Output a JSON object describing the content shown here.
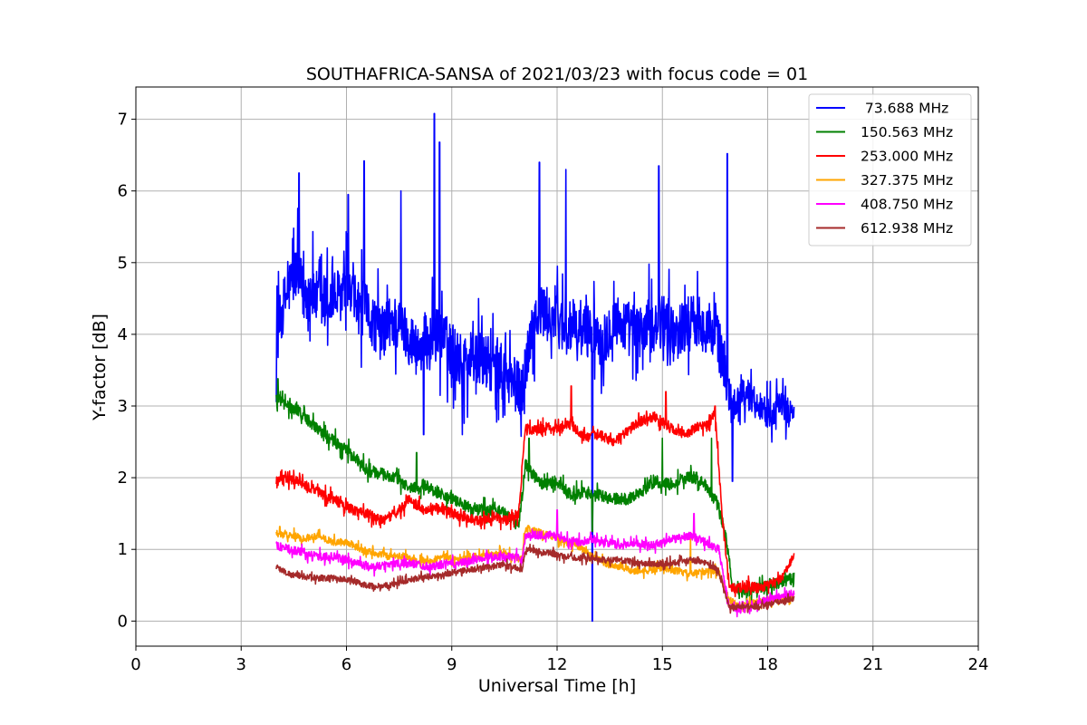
{
  "chart_data": {
    "type": "line",
    "title": "SOUTHAFRICA-SANSA of 2021/03/23 with focus code = 01",
    "xlabel": "Universal Time [h]",
    "ylabel": "Y-factor [dB]",
    "xlim": [
      0,
      24
    ],
    "ylim": [
      -0.35,
      7.45
    ],
    "xticks": [
      0,
      3,
      6,
      9,
      12,
      15,
      18,
      21,
      24
    ],
    "xtick_labels": [
      "0",
      "3",
      "6",
      "9",
      "12",
      "15",
      "18",
      "21",
      "24"
    ],
    "yticks": [
      0,
      1,
      2,
      3,
      4,
      5,
      6,
      7
    ],
    "ytick_labels": [
      "0",
      "1",
      "2",
      "3",
      "4",
      "5",
      "6",
      "7"
    ],
    "grid": true,
    "legend_position": "top-right",
    "series": [
      {
        "name": " 73.688 MHz",
        "color": "#0000ff",
        "x": [
          4.0,
          4.2,
          4.4,
          4.6,
          4.8,
          5.0,
          5.3,
          5.6,
          6.0,
          6.3,
          6.6,
          7.0,
          7.3,
          7.6,
          8.0,
          8.3,
          8.6,
          9.0,
          9.3,
          9.6,
          10.0,
          10.3,
          10.6,
          11.0,
          11.3,
          11.6,
          12.0,
          12.3,
          12.6,
          13.0,
          13.3,
          13.6,
          14.0,
          14.3,
          14.6,
          15.0,
          15.3,
          15.6,
          16.0,
          16.3,
          16.6,
          17.0,
          17.3,
          17.6,
          18.0,
          18.3,
          18.6,
          18.75
        ],
        "y": [
          3.9,
          4.4,
          4.7,
          4.9,
          4.5,
          4.6,
          4.4,
          4.5,
          4.6,
          4.4,
          4.3,
          4.0,
          4.2,
          4.1,
          3.8,
          3.9,
          4.0,
          3.8,
          3.6,
          3.7,
          3.6,
          3.5,
          3.4,
          3.2,
          4.2,
          4.3,
          4.2,
          4.1,
          4.0,
          4.1,
          3.9,
          4.2,
          4.1,
          4.0,
          4.1,
          4.2,
          4.0,
          4.1,
          4.2,
          4.1,
          3.9,
          3.0,
          3.2,
          3.1,
          2.9,
          3.0,
          2.9,
          3.0
        ],
        "spikes": [
          {
            "x": 4.65,
            "y": 6.25
          },
          {
            "x": 6.05,
            "y": 5.95
          },
          {
            "x": 6.5,
            "y": 6.42
          },
          {
            "x": 7.55,
            "y": 6.0
          },
          {
            "x": 8.5,
            "y": 7.08
          },
          {
            "x": 8.65,
            "y": 6.68
          },
          {
            "x": 11.5,
            "y": 6.4
          },
          {
            "x": 12.25,
            "y": 6.3
          },
          {
            "x": 13.0,
            "y": 0.0
          },
          {
            "x": 14.9,
            "y": 6.35
          },
          {
            "x": 16.85,
            "y": 6.52
          },
          {
            "x": 17.0,
            "y": 1.95
          },
          {
            "x": 8.2,
            "y": 2.6
          },
          {
            "x": 9.3,
            "y": 2.6
          }
        ]
      },
      {
        "name": "150.563 MHz",
        "color": "#008000",
        "x": [
          4.0,
          4.3,
          4.6,
          5.0,
          5.4,
          5.8,
          6.2,
          6.6,
          7.0,
          7.4,
          7.8,
          8.2,
          8.6,
          9.0,
          9.4,
          9.8,
          10.2,
          10.6,
          10.9,
          11.1,
          11.3,
          11.6,
          12.0,
          12.4,
          12.8,
          13.2,
          13.6,
          14.0,
          14.4,
          14.8,
          15.2,
          15.6,
          16.0,
          16.3,
          16.6,
          16.8,
          17.0,
          17.3,
          17.6,
          18.0,
          18.4,
          18.75
        ],
        "y": [
          3.1,
          3.0,
          2.95,
          2.75,
          2.6,
          2.45,
          2.3,
          2.1,
          2.05,
          2.0,
          1.85,
          1.9,
          1.8,
          1.7,
          1.6,
          1.55,
          1.55,
          1.5,
          1.3,
          2.2,
          2.05,
          1.9,
          1.95,
          1.75,
          1.8,
          1.75,
          1.7,
          1.7,
          1.8,
          1.95,
          1.9,
          2.0,
          2.0,
          1.85,
          1.6,
          1.2,
          0.5,
          0.4,
          0.45,
          0.5,
          0.55,
          0.6
        ],
        "spikes": [
          {
            "x": 4.05,
            "y": 3.38
          },
          {
            "x": 8.0,
            "y": 2.35
          },
          {
            "x": 11.2,
            "y": 2.55
          },
          {
            "x": 15.0,
            "y": 2.55
          },
          {
            "x": 16.4,
            "y": 2.55
          },
          {
            "x": 13.0,
            "y": 1.25
          }
        ]
      },
      {
        "name": "253.000 MHz",
        "color": "#ff0000",
        "x": [
          4.0,
          4.3,
          4.6,
          5.0,
          5.4,
          5.8,
          6.2,
          6.6,
          7.0,
          7.4,
          7.8,
          8.2,
          8.6,
          9.0,
          9.4,
          9.8,
          10.2,
          10.6,
          10.9,
          11.1,
          11.3,
          11.6,
          12.0,
          12.4,
          12.8,
          13.2,
          13.6,
          14.0,
          14.4,
          14.8,
          15.2,
          15.6,
          16.0,
          16.3,
          16.5,
          16.7,
          16.9,
          17.1,
          17.4,
          17.7,
          18.0,
          18.3,
          18.6,
          18.75
        ],
        "y": [
          1.95,
          1.98,
          1.95,
          1.85,
          1.75,
          1.65,
          1.55,
          1.5,
          1.4,
          1.5,
          1.7,
          1.55,
          1.6,
          1.5,
          1.45,
          1.4,
          1.45,
          1.4,
          1.5,
          2.7,
          2.65,
          2.7,
          2.7,
          2.75,
          2.55,
          2.6,
          2.5,
          2.65,
          2.8,
          2.85,
          2.7,
          2.6,
          2.7,
          2.75,
          2.9,
          1.5,
          0.5,
          0.45,
          0.5,
          0.45,
          0.5,
          0.55,
          0.75,
          0.95
        ],
        "spikes": [
          {
            "x": 12.4,
            "y": 3.28
          },
          {
            "x": 15.1,
            "y": 3.2
          },
          {
            "x": 16.5,
            "y": 3.0
          }
        ]
      },
      {
        "name": "327.375 MHz",
        "color": "#ffa500",
        "x": [
          4.0,
          4.4,
          4.8,
          5.2,
          5.6,
          6.0,
          6.4,
          6.8,
          7.2,
          7.6,
          8.0,
          8.4,
          8.8,
          9.2,
          9.6,
          10.0,
          10.4,
          10.8,
          11.0,
          11.1,
          11.4,
          11.8,
          12.2,
          12.6,
          13.0,
          13.4,
          13.8,
          14.2,
          14.6,
          15.0,
          15.4,
          15.8,
          16.2,
          16.6,
          16.9,
          17.2,
          17.6,
          18.0,
          18.4,
          18.75
        ],
        "y": [
          1.2,
          1.2,
          1.15,
          1.2,
          1.1,
          1.1,
          1.0,
          0.95,
          0.9,
          0.9,
          0.85,
          0.85,
          0.9,
          0.85,
          0.9,
          0.9,
          0.95,
          0.9,
          0.85,
          1.3,
          1.25,
          1.2,
          1.1,
          1.05,
          0.9,
          0.8,
          0.75,
          0.7,
          0.7,
          0.75,
          0.7,
          0.65,
          0.7,
          0.7,
          0.3,
          0.2,
          0.25,
          0.3,
          0.3,
          0.35
        ],
        "spikes": [
          {
            "x": 4.1,
            "y": 1.32
          },
          {
            "x": 15.8,
            "y": 1.22
          }
        ]
      },
      {
        "name": "408.750 MHz",
        "color": "#ff00ff",
        "x": [
          4.0,
          4.4,
          4.8,
          5.2,
          5.6,
          6.0,
          6.4,
          6.8,
          7.2,
          7.6,
          8.0,
          8.4,
          8.8,
          9.2,
          9.6,
          10.0,
          10.4,
          10.8,
          11.0,
          11.1,
          11.4,
          11.8,
          12.2,
          12.6,
          13.0,
          13.4,
          13.8,
          14.2,
          14.6,
          15.0,
          15.4,
          15.8,
          16.2,
          16.6,
          16.9,
          17.2,
          17.6,
          18.0,
          18.4,
          18.75
        ],
        "y": [
          1.05,
          1.0,
          0.95,
          0.9,
          0.9,
          0.85,
          0.8,
          0.75,
          0.8,
          0.8,
          0.8,
          0.75,
          0.8,
          0.8,
          0.85,
          0.9,
          0.9,
          0.9,
          0.85,
          1.2,
          1.2,
          1.2,
          1.15,
          1.1,
          1.15,
          1.1,
          1.05,
          1.1,
          1.05,
          1.1,
          1.15,
          1.2,
          1.1,
          1.0,
          0.2,
          0.15,
          0.2,
          0.3,
          0.35,
          0.4
        ],
        "spikes": [
          {
            "x": 12.0,
            "y": 1.55
          },
          {
            "x": 15.9,
            "y": 1.5
          }
        ]
      },
      {
        "name": "612.938 MHz",
        "color": "#a52a2a",
        "x": [
          4.0,
          4.4,
          4.8,
          5.2,
          5.6,
          6.0,
          6.4,
          6.8,
          7.2,
          7.6,
          8.0,
          8.4,
          8.8,
          9.2,
          9.6,
          10.0,
          10.4,
          10.8,
          11.0,
          11.1,
          11.4,
          11.8,
          12.2,
          12.6,
          13.0,
          13.4,
          13.8,
          14.2,
          14.6,
          15.0,
          15.4,
          15.8,
          16.2,
          16.6,
          16.9,
          17.2,
          17.6,
          18.0,
          18.4,
          18.75
        ],
        "y": [
          0.75,
          0.65,
          0.62,
          0.6,
          0.6,
          0.58,
          0.52,
          0.48,
          0.5,
          0.55,
          0.6,
          0.62,
          0.65,
          0.7,
          0.72,
          0.75,
          0.78,
          0.75,
          0.72,
          1.0,
          0.98,
          0.95,
          0.9,
          0.88,
          0.88,
          0.85,
          0.85,
          0.82,
          0.8,
          0.8,
          0.82,
          0.85,
          0.82,
          0.7,
          0.2,
          0.2,
          0.2,
          0.22,
          0.28,
          0.32
        ],
        "spikes": []
      }
    ]
  }
}
